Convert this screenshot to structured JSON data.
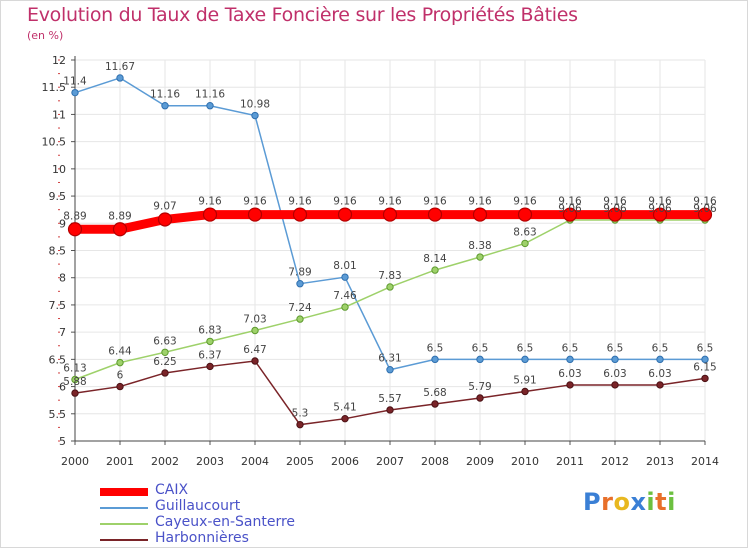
{
  "title": "Evolution du Taux de Taxe Foncière sur les Propriétés Bâties",
  "unit_label": "(en %)",
  "brand": {
    "letters": [
      "P",
      "r",
      "o",
      "x",
      "i",
      "t",
      "i"
    ],
    "colors": [
      "#3a7fd5",
      "#e8702a",
      "#e8b820",
      "#3a7fd5",
      "#6cc040",
      "#e8702a",
      "#6cc040"
    ]
  },
  "chart_data": {
    "type": "line",
    "title": "Evolution du Taux de Taxe Foncière sur les Propriétés Bâties",
    "ylabel": "(en %)",
    "xlabel": "",
    "ylim": [
      5,
      12
    ],
    "yticks": [
      "5",
      "5.5",
      "6",
      "6.5",
      "7",
      "7.5",
      "8",
      "8.5",
      "9",
      "9.5",
      "10",
      "10.5",
      "11",
      "11.5",
      "12"
    ],
    "x": [
      "2000",
      "2001",
      "2002",
      "2003",
      "2004",
      "2005",
      "2006",
      "2007",
      "2008",
      "2009",
      "2010",
      "2011",
      "2012",
      "2013",
      "2014"
    ],
    "grid": true,
    "series": [
      {
        "name": "CAIX",
        "color": "#ff0000",
        "emphasis": true,
        "values": [
          8.89,
          8.89,
          9.07,
          9.16,
          9.16,
          9.16,
          9.16,
          9.16,
          9.16,
          9.16,
          9.16,
          9.16,
          9.16,
          9.16,
          9.16
        ],
        "labels": [
          "8.89",
          "8.89",
          "9.07",
          "9.16",
          "9.16",
          "9.16",
          "9.16",
          "9.16",
          "9.16",
          "9.16",
          "9.16",
          "9.16",
          "9.16",
          "9.16",
          "9.16"
        ]
      },
      {
        "name": "Guillaucourt",
        "color": "#5b9bd5",
        "values": [
          11.4,
          11.67,
          11.16,
          11.16,
          10.98,
          7.89,
          8.01,
          6.31,
          6.5,
          6.5,
          6.5,
          6.5,
          6.5,
          6.5,
          6.5
        ],
        "labels": [
          "11.4",
          "11.67",
          "11.16",
          "11.16",
          "10.98",
          "7.89",
          "8.01",
          "6.31",
          "6.5",
          "6.5",
          "6.5",
          "6.5",
          "6.5",
          "6.5",
          "6.5"
        ]
      },
      {
        "name": "Cayeux-en-Santerre",
        "color": "#9ed16a",
        "values": [
          6.13,
          6.44,
          6.63,
          6.83,
          7.03,
          7.24,
          7.46,
          7.83,
          8.14,
          8.38,
          8.63,
          9.06,
          9.06,
          9.06,
          9.06
        ],
        "labels": [
          "6.13",
          "6.44",
          "6.63",
          "6.83",
          "7.03",
          "7.24",
          "7.46",
          "7.83",
          "8.14",
          "8.38",
          "8.63",
          "9.06",
          "9.06",
          "9.06",
          "9.06"
        ]
      },
      {
        "name": "Harbonnières",
        "color": "#7a2428",
        "values": [
          5.88,
          6,
          6.25,
          6.37,
          6.47,
          5.3,
          5.41,
          5.57,
          5.68,
          5.79,
          5.91,
          6.03,
          6.03,
          6.03,
          6.15
        ],
        "labels": [
          "5.88",
          "6",
          "6.25",
          "6.37",
          "6.47",
          "5.3",
          "5.41",
          "5.57",
          "5.68",
          "5.79",
          "5.91",
          "6.03",
          "6.03",
          "6.03",
          "6.15"
        ]
      }
    ],
    "legend": "bottom-left"
  }
}
